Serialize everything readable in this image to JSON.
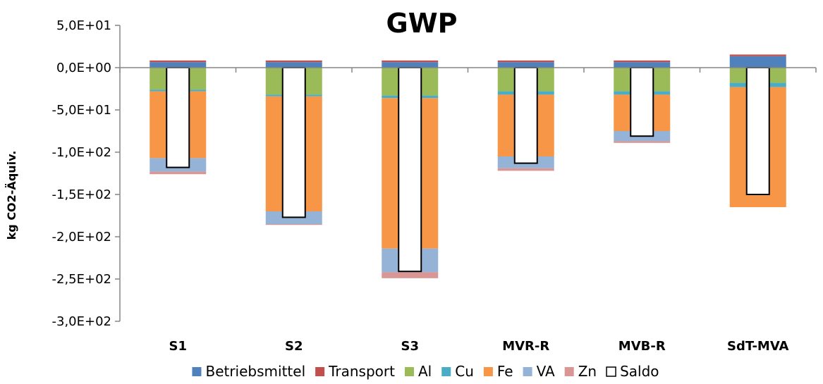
{
  "chart_data": {
    "type": "bar",
    "stacked": true,
    "title": "GWP",
    "ylabel": "kg CO2-Äquiv.",
    "xlabel": "",
    "ylim": [
      -300,
      50
    ],
    "yticks": [
      50,
      0,
      -50,
      -100,
      -150,
      -200,
      -250,
      -300
    ],
    "ytick_labels": [
      "5,0E+01",
      "0,0E+00",
      "-5,0E+01",
      "-1,0E+02",
      "-1,5E+02",
      "-2,0E+02",
      "-2,5E+02",
      "-3,0E+02"
    ],
    "grid": false,
    "legend_position": "bottom",
    "categories": [
      "S1",
      "S2",
      "S3",
      "MVR-R",
      "MVB-R",
      "SdT-MVA"
    ],
    "series": [
      {
        "name": "Betriebsmittel",
        "color": "#4f81bd",
        "values": [
          6.5,
          6.5,
          6.5,
          6.5,
          6.5,
          13.5
        ]
      },
      {
        "name": "Transport",
        "color": "#c0504d",
        "values": [
          2,
          2,
          2,
          2,
          2,
          2
        ]
      },
      {
        "name": "Al",
        "color": "#9bbb59",
        "values": [
          -26,
          -32,
          -33,
          -28,
          -28,
          -18
        ]
      },
      {
        "name": "Cu",
        "color": "#4bacc6",
        "values": [
          -2,
          -2,
          -3,
          -4,
          -4,
          -5
        ]
      },
      {
        "name": "Fe",
        "color": "#f79646",
        "values": [
          -79,
          -136,
          -178,
          -73,
          -43,
          -142
        ]
      },
      {
        "name": "VA",
        "color": "#95b3d7",
        "values": [
          -16,
          -15,
          -28,
          -14,
          -12,
          0
        ]
      },
      {
        "name": "Zn",
        "color": "#da9694",
        "values": [
          -3,
          -1,
          -7,
          -3,
          -2,
          0
        ]
      }
    ],
    "saldo": {
      "name": "Saldo",
      "color": "#ffffff",
      "values": [
        -118,
        -177,
        -241,
        -113,
        -81,
        -150
      ]
    }
  }
}
